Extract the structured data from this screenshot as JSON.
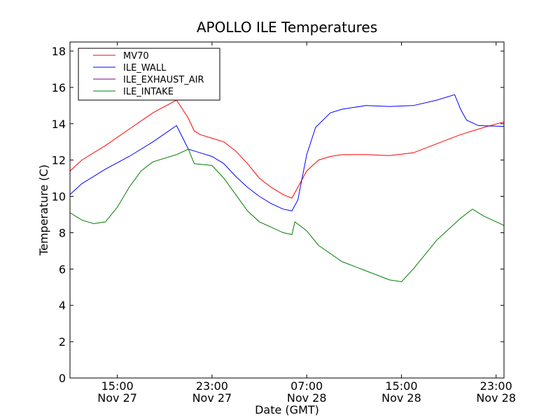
{
  "chart_data": {
    "type": "line",
    "title": "APOLLO ILE Temperatures",
    "xlabel": "Date (GMT)",
    "ylabel": "Temperature (C)",
    "xlim": [
      "2009-11-27 11:00",
      "2009-11-28 23:40"
    ],
    "ylim": [
      0,
      18.5
    ],
    "yticks": [
      0,
      2,
      4,
      6,
      8,
      10,
      12,
      14,
      16,
      18
    ],
    "xticks": [
      {
        "time": "2009-11-27 15:00",
        "label_time": "15:00",
        "label_date": "Nov 27"
      },
      {
        "time": "2009-11-27 23:00",
        "label_time": "23:00",
        "label_date": "Nov 27"
      },
      {
        "time": "2009-11-28 07:00",
        "label_time": "07:00",
        "label_date": "Nov 28"
      },
      {
        "time": "2009-11-28 15:00",
        "label_time": "15:00",
        "label_date": "Nov 28"
      },
      {
        "time": "2009-11-28 23:00",
        "label_time": "23:00",
        "label_date": "Nov 28"
      }
    ],
    "grid": false,
    "legend_position": "upper-left",
    "series": [
      {
        "name": "MV70",
        "color": "#ff0000",
        "x": [
          "2009-11-27 11:00",
          "2009-11-27 12:00",
          "2009-11-27 14:00",
          "2009-11-27 16:00",
          "2009-11-27 18:00",
          "2009-11-27 20:00",
          "2009-11-27 21:00",
          "2009-11-27 21:30",
          "2009-11-27 22:00",
          "2009-11-27 23:00",
          "2009-11-28 00:00",
          "2009-11-28 01:00",
          "2009-11-28 02:00",
          "2009-11-28 03:00",
          "2009-11-28 04:00",
          "2009-11-28 05:00",
          "2009-11-28 05:45",
          "2009-11-28 06:30",
          "2009-11-28 07:00",
          "2009-11-28 08:00",
          "2009-11-28 09:00",
          "2009-11-28 10:00",
          "2009-11-28 12:00",
          "2009-11-28 14:00",
          "2009-11-28 16:00",
          "2009-11-28 18:00",
          "2009-11-28 20:00",
          "2009-11-28 22:00",
          "2009-11-28 23:40"
        ],
        "y": [
          11.4,
          12.0,
          12.8,
          13.7,
          14.6,
          15.3,
          14.3,
          13.6,
          13.4,
          13.2,
          13.0,
          12.5,
          11.8,
          11.0,
          10.5,
          10.1,
          9.9,
          10.8,
          11.4,
          12.0,
          12.2,
          12.3,
          12.3,
          12.25,
          12.4,
          12.9,
          13.4,
          13.8,
          14.1
        ]
      },
      {
        "name": "ILE_WALL",
        "color": "#0000ff",
        "x": [
          "2009-11-27 11:00",
          "2009-11-27 12:00",
          "2009-11-27 14:00",
          "2009-11-27 16:00",
          "2009-11-27 18:00",
          "2009-11-27 20:00",
          "2009-11-27 21:00",
          "2009-11-27 21:30",
          "2009-11-27 22:00",
          "2009-11-27 23:00",
          "2009-11-28 00:00",
          "2009-11-28 01:00",
          "2009-11-28 02:00",
          "2009-11-28 03:00",
          "2009-11-28 04:00",
          "2009-11-28 05:00",
          "2009-11-28 05:45",
          "2009-11-28 06:15",
          "2009-11-28 07:00",
          "2009-11-28 07:45",
          "2009-11-28 09:00",
          "2009-11-28 10:00",
          "2009-11-28 12:00",
          "2009-11-28 14:00",
          "2009-11-28 16:00",
          "2009-11-28 18:00",
          "2009-11-28 19:30",
          "2009-11-28 20:00",
          "2009-11-28 20:30",
          "2009-11-28 21:30",
          "2009-11-28 23:40"
        ],
        "y": [
          10.1,
          10.7,
          11.5,
          12.2,
          13.0,
          13.9,
          12.6,
          12.5,
          12.4,
          12.2,
          11.8,
          11.1,
          10.5,
          10.0,
          9.6,
          9.3,
          9.2,
          9.8,
          12.3,
          13.8,
          14.6,
          14.8,
          15.0,
          14.95,
          15.0,
          15.3,
          15.6,
          14.8,
          14.2,
          13.9,
          13.85
        ]
      },
      {
        "name": "ILE_EXHAUST_AIR",
        "color": "#7f007f",
        "x": [],
        "y": []
      },
      {
        "name": "ILE_INTAKE",
        "color": "#007f00",
        "x": [
          "2009-11-27 11:00",
          "2009-11-27 12:00",
          "2009-11-27 13:00",
          "2009-11-27 14:00",
          "2009-11-27 15:00",
          "2009-11-27 16:00",
          "2009-11-27 17:00",
          "2009-11-27 18:00",
          "2009-11-27 20:00",
          "2009-11-27 21:00",
          "2009-11-27 21:30",
          "2009-11-27 23:00",
          "2009-11-28 00:00",
          "2009-11-28 01:00",
          "2009-11-28 02:00",
          "2009-11-28 03:00",
          "2009-11-28 04:00",
          "2009-11-28 05:00",
          "2009-11-28 05:45",
          "2009-11-28 06:00",
          "2009-11-28 07:00",
          "2009-11-28 08:00",
          "2009-11-28 10:00",
          "2009-11-28 12:00",
          "2009-11-28 14:00",
          "2009-11-28 15:00",
          "2009-11-28 16:00",
          "2009-11-28 18:00",
          "2009-11-28 20:00",
          "2009-11-28 21:00",
          "2009-11-28 22:00",
          "2009-11-28 23:40"
        ],
        "y": [
          9.1,
          8.7,
          8.5,
          8.6,
          9.4,
          10.5,
          11.4,
          11.9,
          12.3,
          12.6,
          11.8,
          11.7,
          11.0,
          10.1,
          9.2,
          8.6,
          8.3,
          8.0,
          7.9,
          8.6,
          8.1,
          7.3,
          6.4,
          5.9,
          5.4,
          5.3,
          6.0,
          7.6,
          8.8,
          9.3,
          8.9,
          8.4
        ]
      }
    ]
  }
}
